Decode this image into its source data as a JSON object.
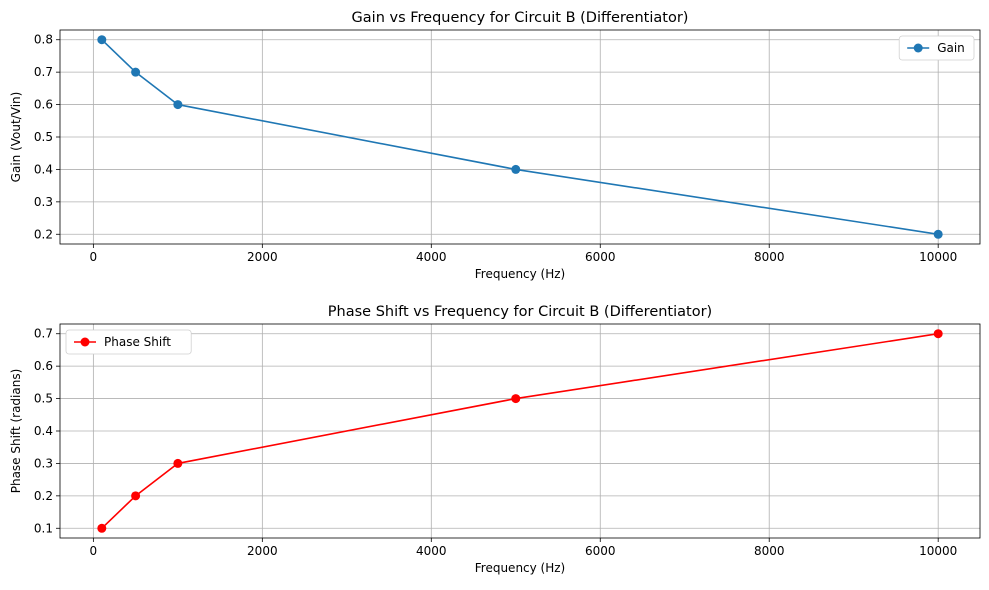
{
  "chart_data": [
    {
      "type": "line",
      "title": "Gain vs Frequency for Circuit B (Differentiator)",
      "xlabel": "Frequency (Hz)",
      "ylabel": "Gain (Vout/Vin)",
      "x": [
        100,
        500,
        1000,
        5000,
        10000
      ],
      "series": [
        {
          "name": "Gain",
          "values": [
            0.8,
            0.7,
            0.6,
            0.4,
            0.2
          ],
          "color": "#1f77b4",
          "marker": "circle"
        }
      ],
      "xlim": [
        -395,
        10495
      ],
      "ylim": [
        0.17,
        0.83
      ],
      "xticks": [
        0,
        2000,
        4000,
        6000,
        8000,
        10000
      ],
      "xtick_labels": [
        "0",
        "2000",
        "4000",
        "6000",
        "8000",
        "10000"
      ],
      "yticks": [
        0.2,
        0.3,
        0.4,
        0.5,
        0.6,
        0.7,
        0.8
      ],
      "ytick_labels": [
        "0.2",
        "0.3",
        "0.4",
        "0.5",
        "0.6",
        "0.7",
        "0.8"
      ],
      "grid": true,
      "legend": "upper-right"
    },
    {
      "type": "line",
      "title": "Phase Shift vs Frequency for Circuit B (Differentiator)",
      "xlabel": "Frequency (Hz)",
      "ylabel": "Phase Shift (radians)",
      "x": [
        100,
        500,
        1000,
        5000,
        10000
      ],
      "series": [
        {
          "name": "Phase Shift",
          "values": [
            0.1,
            0.2,
            0.3,
            0.5,
            0.7
          ],
          "color": "#ff0000",
          "marker": "circle"
        }
      ],
      "xlim": [
        -395,
        10495
      ],
      "ylim": [
        0.07,
        0.73
      ],
      "xticks": [
        0,
        2000,
        4000,
        6000,
        8000,
        10000
      ],
      "xtick_labels": [
        "0",
        "2000",
        "4000",
        "6000",
        "8000",
        "10000"
      ],
      "yticks": [
        0.1,
        0.2,
        0.3,
        0.4,
        0.5,
        0.6,
        0.7
      ],
      "ytick_labels": [
        "0.1",
        "0.2",
        "0.3",
        "0.4",
        "0.5",
        "0.6",
        "0.7"
      ],
      "grid": true,
      "legend": "upper-left"
    }
  ]
}
